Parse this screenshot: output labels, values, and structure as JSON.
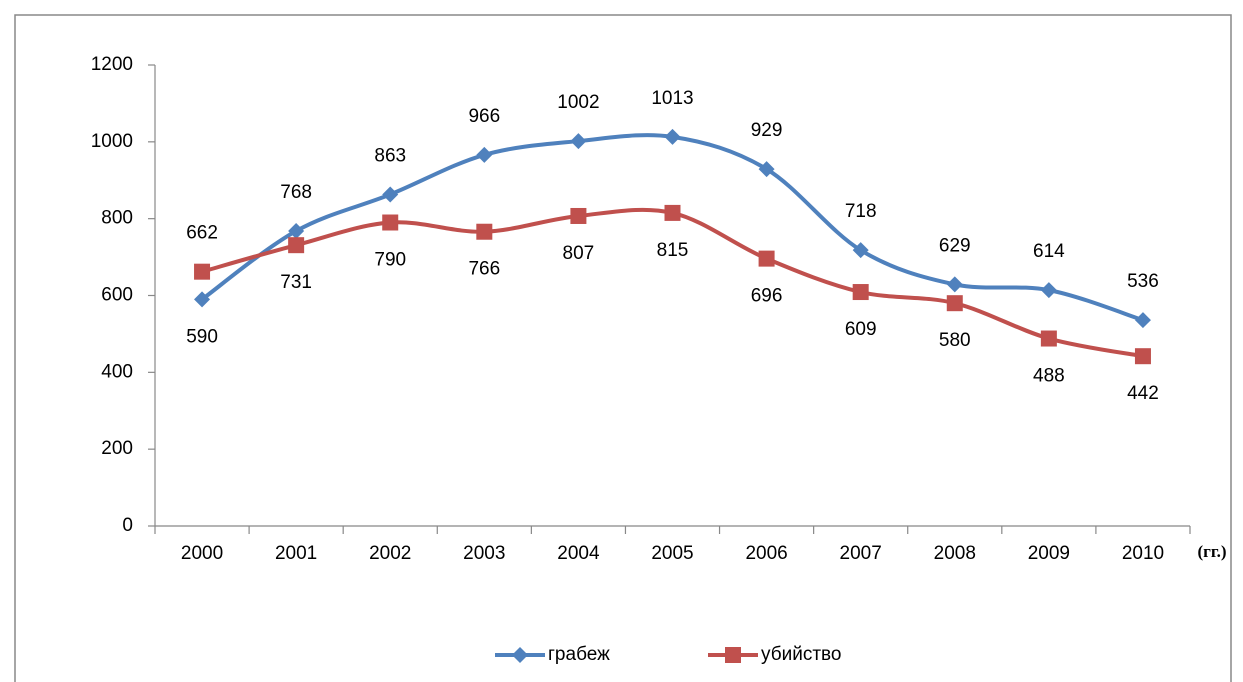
{
  "chart_data": {
    "type": "line",
    "categories": [
      "2000",
      "2001",
      "2002",
      "2003",
      "2004",
      "2005",
      "2006",
      "2007",
      "2008",
      "2009",
      "2010"
    ],
    "x_label": "(гг.)",
    "series": [
      {
        "name": "грабеж",
        "color": "#4f81bd",
        "marker": "diamond",
        "values": [
          590,
          768,
          863,
          966,
          1002,
          1013,
          929,
          718,
          629,
          614,
          536
        ]
      },
      {
        "name": "убийство",
        "color": "#c0504d",
        "marker": "square",
        "values": [
          662,
          731,
          790,
          766,
          807,
          815,
          696,
          609,
          580,
          488,
          442
        ]
      }
    ],
    "ylim": [
      0,
      1200
    ],
    "yticks": [
      0,
      200,
      400,
      600,
      800,
      1000,
      1200
    ],
    "smooth": true,
    "legend": "bottom"
  }
}
